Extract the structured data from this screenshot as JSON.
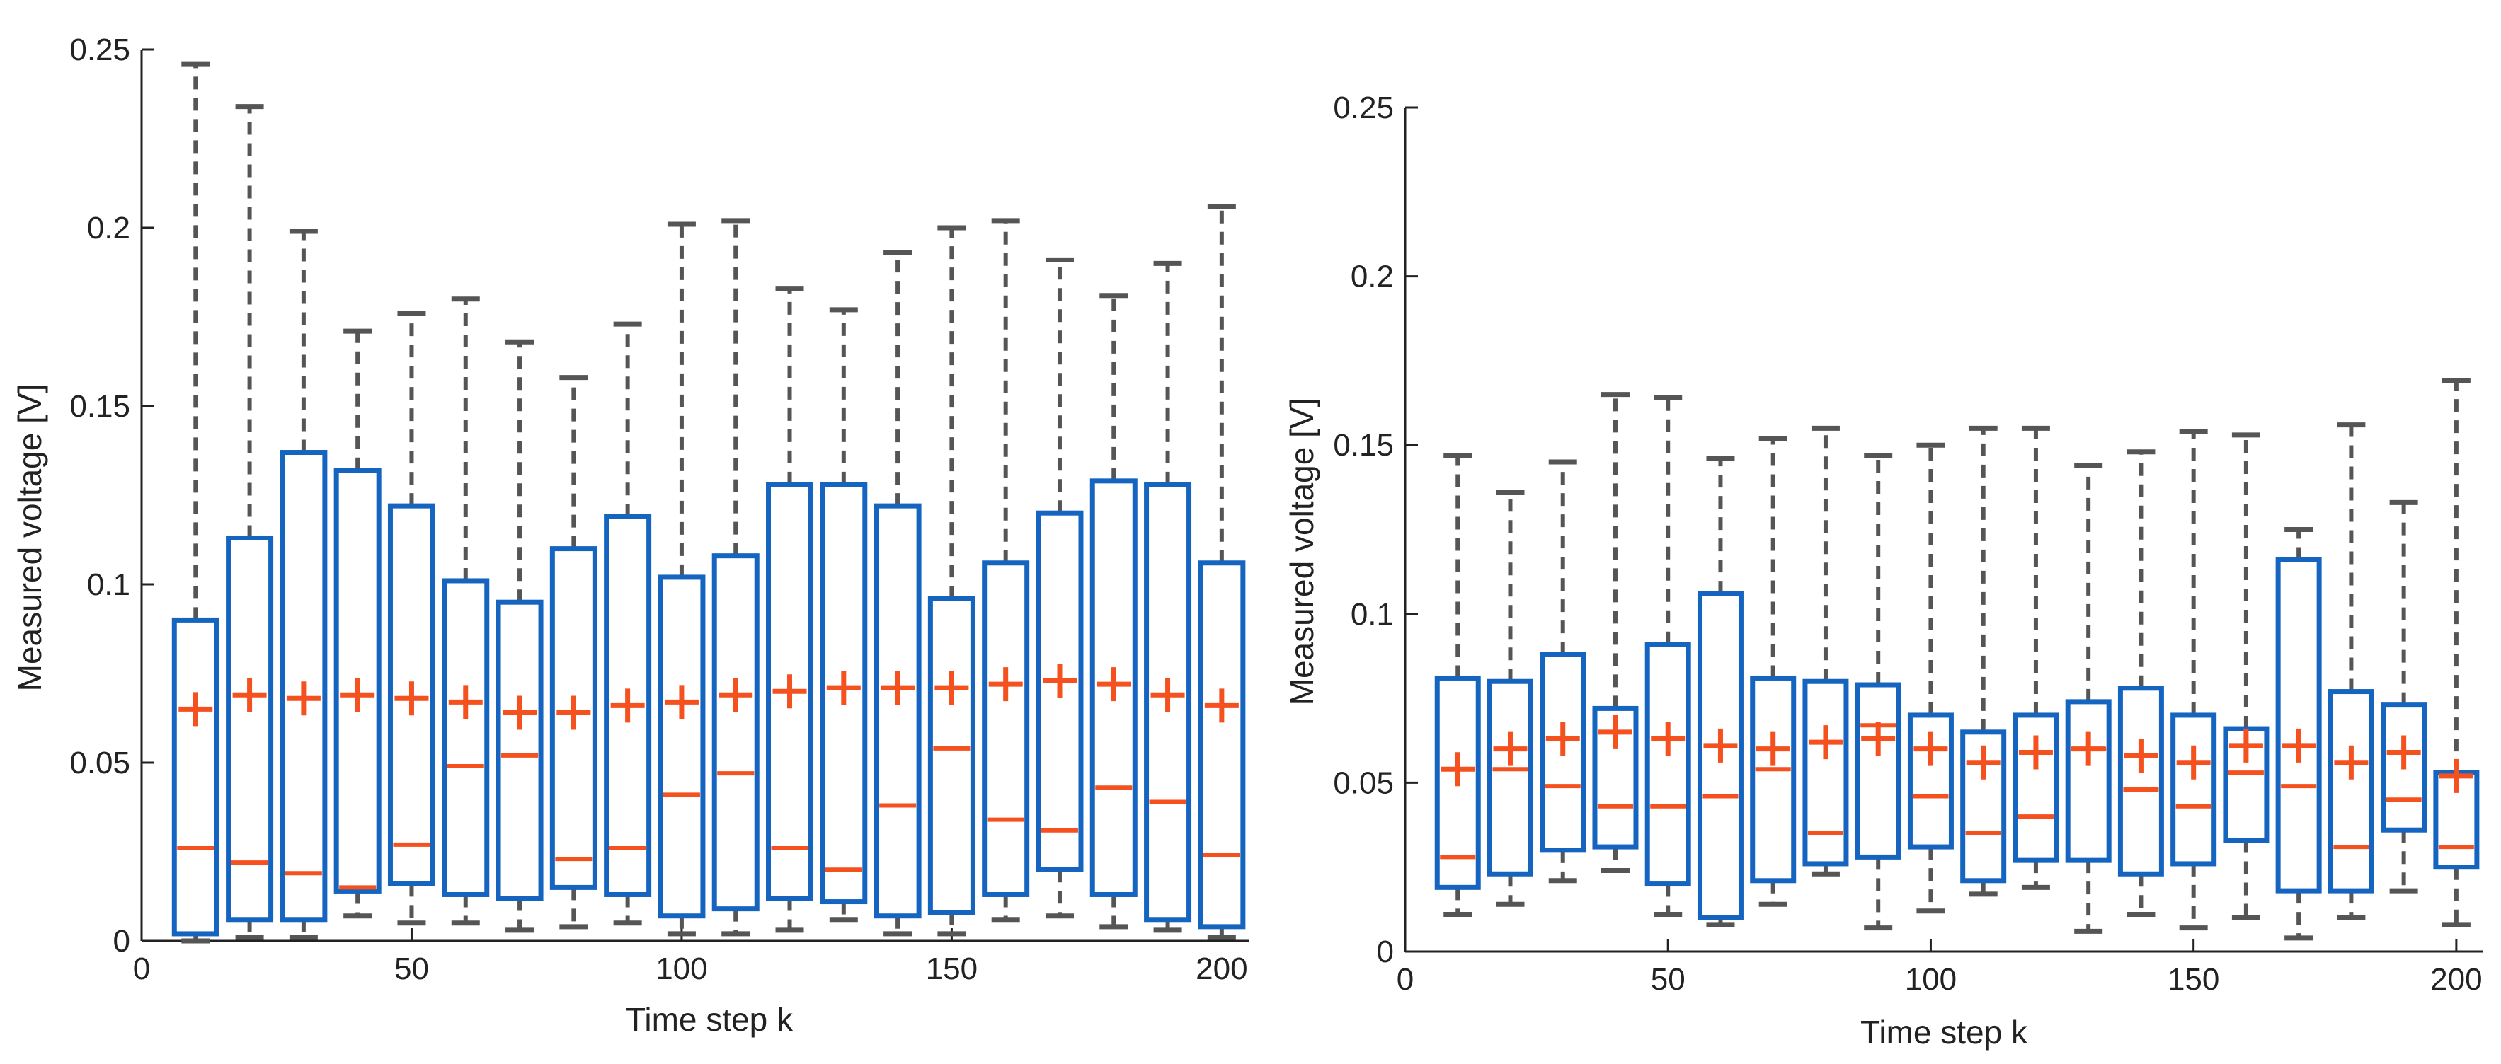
{
  "colors": {
    "box": "#1565C0",
    "median": "#F4511E",
    "mean": "#F4511E",
    "whisker": "#555555",
    "axis": "#222222"
  },
  "chart_data": [
    {
      "type": "box",
      "title": "",
      "xlabel": "Time step k",
      "ylabel": "Measured voltage [V]",
      "xlim": [
        0,
        205
      ],
      "ylim": [
        0,
        0.25
      ],
      "xticks": [
        0,
        50,
        100,
        150,
        200
      ],
      "yticks": [
        0,
        0.05,
        0.1,
        0.15,
        0.2,
        0.25
      ],
      "xtick_labels": [
        "0",
        "50",
        "100",
        "150",
        "200"
      ],
      "ytick_labels": [
        "0",
        "0.05",
        "0.1",
        "0.15",
        "0.2",
        "0.25"
      ],
      "grid": false,
      "boxes": [
        {
          "x": 10,
          "whisker_low": 0.0,
          "q1": 0.002,
          "median": 0.026,
          "q3": 0.09,
          "whisker_high": 0.246,
          "mean": 0.065
        },
        {
          "x": 20,
          "whisker_low": 0.001,
          "q1": 0.006,
          "median": 0.022,
          "q3": 0.113,
          "whisker_high": 0.234,
          "mean": 0.069
        },
        {
          "x": 30,
          "whisker_low": 0.001,
          "q1": 0.006,
          "median": 0.019,
          "q3": 0.137,
          "whisker_high": 0.199,
          "mean": 0.068
        },
        {
          "x": 40,
          "whisker_low": 0.007,
          "q1": 0.014,
          "median": 0.015,
          "q3": 0.132,
          "whisker_high": 0.171,
          "mean": 0.069
        },
        {
          "x": 50,
          "whisker_low": 0.005,
          "q1": 0.016,
          "median": 0.027,
          "q3": 0.122,
          "whisker_high": 0.176,
          "mean": 0.068
        },
        {
          "x": 60,
          "whisker_low": 0.005,
          "q1": 0.013,
          "median": 0.049,
          "q3": 0.101,
          "whisker_high": 0.18,
          "mean": 0.067
        },
        {
          "x": 70,
          "whisker_low": 0.003,
          "q1": 0.012,
          "median": 0.052,
          "q3": 0.095,
          "whisker_high": 0.168,
          "mean": 0.064
        },
        {
          "x": 80,
          "whisker_low": 0.004,
          "q1": 0.015,
          "median": 0.023,
          "q3": 0.11,
          "whisker_high": 0.158,
          "mean": 0.064
        },
        {
          "x": 90,
          "whisker_low": 0.005,
          "q1": 0.013,
          "median": 0.026,
          "q3": 0.119,
          "whisker_high": 0.173,
          "mean": 0.066
        },
        {
          "x": 100,
          "whisker_low": 0.002,
          "q1": 0.007,
          "median": 0.041,
          "q3": 0.102,
          "whisker_high": 0.201,
          "mean": 0.067
        },
        {
          "x": 110,
          "whisker_low": 0.002,
          "q1": 0.009,
          "median": 0.047,
          "q3": 0.108,
          "whisker_high": 0.202,
          "mean": 0.069
        },
        {
          "x": 120,
          "whisker_low": 0.003,
          "q1": 0.012,
          "median": 0.026,
          "q3": 0.128,
          "whisker_high": 0.183,
          "mean": 0.07
        },
        {
          "x": 130,
          "whisker_low": 0.006,
          "q1": 0.011,
          "median": 0.02,
          "q3": 0.128,
          "whisker_high": 0.177,
          "mean": 0.071
        },
        {
          "x": 140,
          "whisker_low": 0.002,
          "q1": 0.007,
          "median": 0.038,
          "q3": 0.122,
          "whisker_high": 0.193,
          "mean": 0.071
        },
        {
          "x": 150,
          "whisker_low": 0.002,
          "q1": 0.008,
          "median": 0.054,
          "q3": 0.096,
          "whisker_high": 0.2,
          "mean": 0.071
        },
        {
          "x": 160,
          "whisker_low": 0.006,
          "q1": 0.013,
          "median": 0.034,
          "q3": 0.106,
          "whisker_high": 0.202,
          "mean": 0.072
        },
        {
          "x": 170,
          "whisker_low": 0.007,
          "q1": 0.02,
          "median": 0.031,
          "q3": 0.12,
          "whisker_high": 0.191,
          "mean": 0.073
        },
        {
          "x": 180,
          "whisker_low": 0.004,
          "q1": 0.013,
          "median": 0.043,
          "q3": 0.129,
          "whisker_high": 0.181,
          "mean": 0.072
        },
        {
          "x": 190,
          "whisker_low": 0.003,
          "q1": 0.006,
          "median": 0.039,
          "q3": 0.128,
          "whisker_high": 0.19,
          "mean": 0.069
        },
        {
          "x": 200,
          "whisker_low": 0.001,
          "q1": 0.004,
          "median": 0.024,
          "q3": 0.106,
          "whisker_high": 0.206,
          "mean": 0.066
        }
      ]
    },
    {
      "type": "box",
      "title": "",
      "xlabel": "Time step k",
      "ylabel": "Measured voltage [V]",
      "xlim": [
        0,
        205
      ],
      "ylim": [
        0,
        0.25
      ],
      "xticks": [
        0,
        50,
        100,
        150,
        200
      ],
      "yticks": [
        0,
        0.05,
        0.1,
        0.15,
        0.2,
        0.25
      ],
      "xtick_labels": [
        "0",
        "50",
        "100",
        "150",
        "200"
      ],
      "ytick_labels": [
        "0",
        "0.05",
        "0.1",
        "0.15",
        "0.2",
        "0.25"
      ],
      "grid": false,
      "boxes": [
        {
          "x": 10,
          "whisker_low": 0.011,
          "q1": 0.019,
          "median": 0.028,
          "q3": 0.081,
          "whisker_high": 0.147,
          "mean": 0.054
        },
        {
          "x": 20,
          "whisker_low": 0.014,
          "q1": 0.023,
          "median": 0.054,
          "q3": 0.08,
          "whisker_high": 0.136,
          "mean": 0.06
        },
        {
          "x": 30,
          "whisker_low": 0.021,
          "q1": 0.03,
          "median": 0.049,
          "q3": 0.088,
          "whisker_high": 0.145,
          "mean": 0.063
        },
        {
          "x": 40,
          "whisker_low": 0.024,
          "q1": 0.031,
          "median": 0.043,
          "q3": 0.072,
          "whisker_high": 0.165,
          "mean": 0.065
        },
        {
          "x": 50,
          "whisker_low": 0.011,
          "q1": 0.02,
          "median": 0.043,
          "q3": 0.091,
          "whisker_high": 0.164,
          "mean": 0.063
        },
        {
          "x": 60,
          "whisker_low": 0.008,
          "q1": 0.01,
          "median": 0.046,
          "q3": 0.106,
          "whisker_high": 0.146,
          "mean": 0.061
        },
        {
          "x": 70,
          "whisker_low": 0.014,
          "q1": 0.021,
          "median": 0.054,
          "q3": 0.081,
          "whisker_high": 0.152,
          "mean": 0.06
        },
        {
          "x": 80,
          "whisker_low": 0.023,
          "q1": 0.026,
          "median": 0.035,
          "q3": 0.08,
          "whisker_high": 0.155,
          "mean": 0.062
        },
        {
          "x": 90,
          "whisker_low": 0.007,
          "q1": 0.028,
          "median": 0.067,
          "q3": 0.079,
          "whisker_high": 0.147,
          "mean": 0.063
        },
        {
          "x": 100,
          "whisker_low": 0.012,
          "q1": 0.031,
          "median": 0.046,
          "q3": 0.07,
          "whisker_high": 0.15,
          "mean": 0.06
        },
        {
          "x": 110,
          "whisker_low": 0.017,
          "q1": 0.021,
          "median": 0.035,
          "q3": 0.065,
          "whisker_high": 0.155,
          "mean": 0.056
        },
        {
          "x": 120,
          "whisker_low": 0.019,
          "q1": 0.027,
          "median": 0.04,
          "q3": 0.07,
          "whisker_high": 0.155,
          "mean": 0.059
        },
        {
          "x": 130,
          "whisker_low": 0.006,
          "q1": 0.027,
          "median": 0.06,
          "q3": 0.074,
          "whisker_high": 0.144,
          "mean": 0.06
        },
        {
          "x": 140,
          "whisker_low": 0.011,
          "q1": 0.023,
          "median": 0.048,
          "q3": 0.078,
          "whisker_high": 0.148,
          "mean": 0.058
        },
        {
          "x": 150,
          "whisker_low": 0.007,
          "q1": 0.026,
          "median": 0.043,
          "q3": 0.07,
          "whisker_high": 0.154,
          "mean": 0.056
        },
        {
          "x": 160,
          "whisker_low": 0.01,
          "q1": 0.033,
          "median": 0.053,
          "q3": 0.066,
          "whisker_high": 0.153,
          "mean": 0.061
        },
        {
          "x": 170,
          "whisker_low": 0.004,
          "q1": 0.018,
          "median": 0.049,
          "q3": 0.116,
          "whisker_high": 0.125,
          "mean": 0.061
        },
        {
          "x": 180,
          "whisker_low": 0.01,
          "q1": 0.018,
          "median": 0.031,
          "q3": 0.077,
          "whisker_high": 0.156,
          "mean": 0.056
        },
        {
          "x": 190,
          "whisker_low": 0.018,
          "q1": 0.036,
          "median": 0.045,
          "q3": 0.073,
          "whisker_high": 0.133,
          "mean": 0.059
        },
        {
          "x": 200,
          "whisker_low": 0.008,
          "q1": 0.025,
          "median": 0.031,
          "q3": 0.053,
          "whisker_high": 0.169,
          "mean": 0.052
        }
      ]
    }
  ]
}
